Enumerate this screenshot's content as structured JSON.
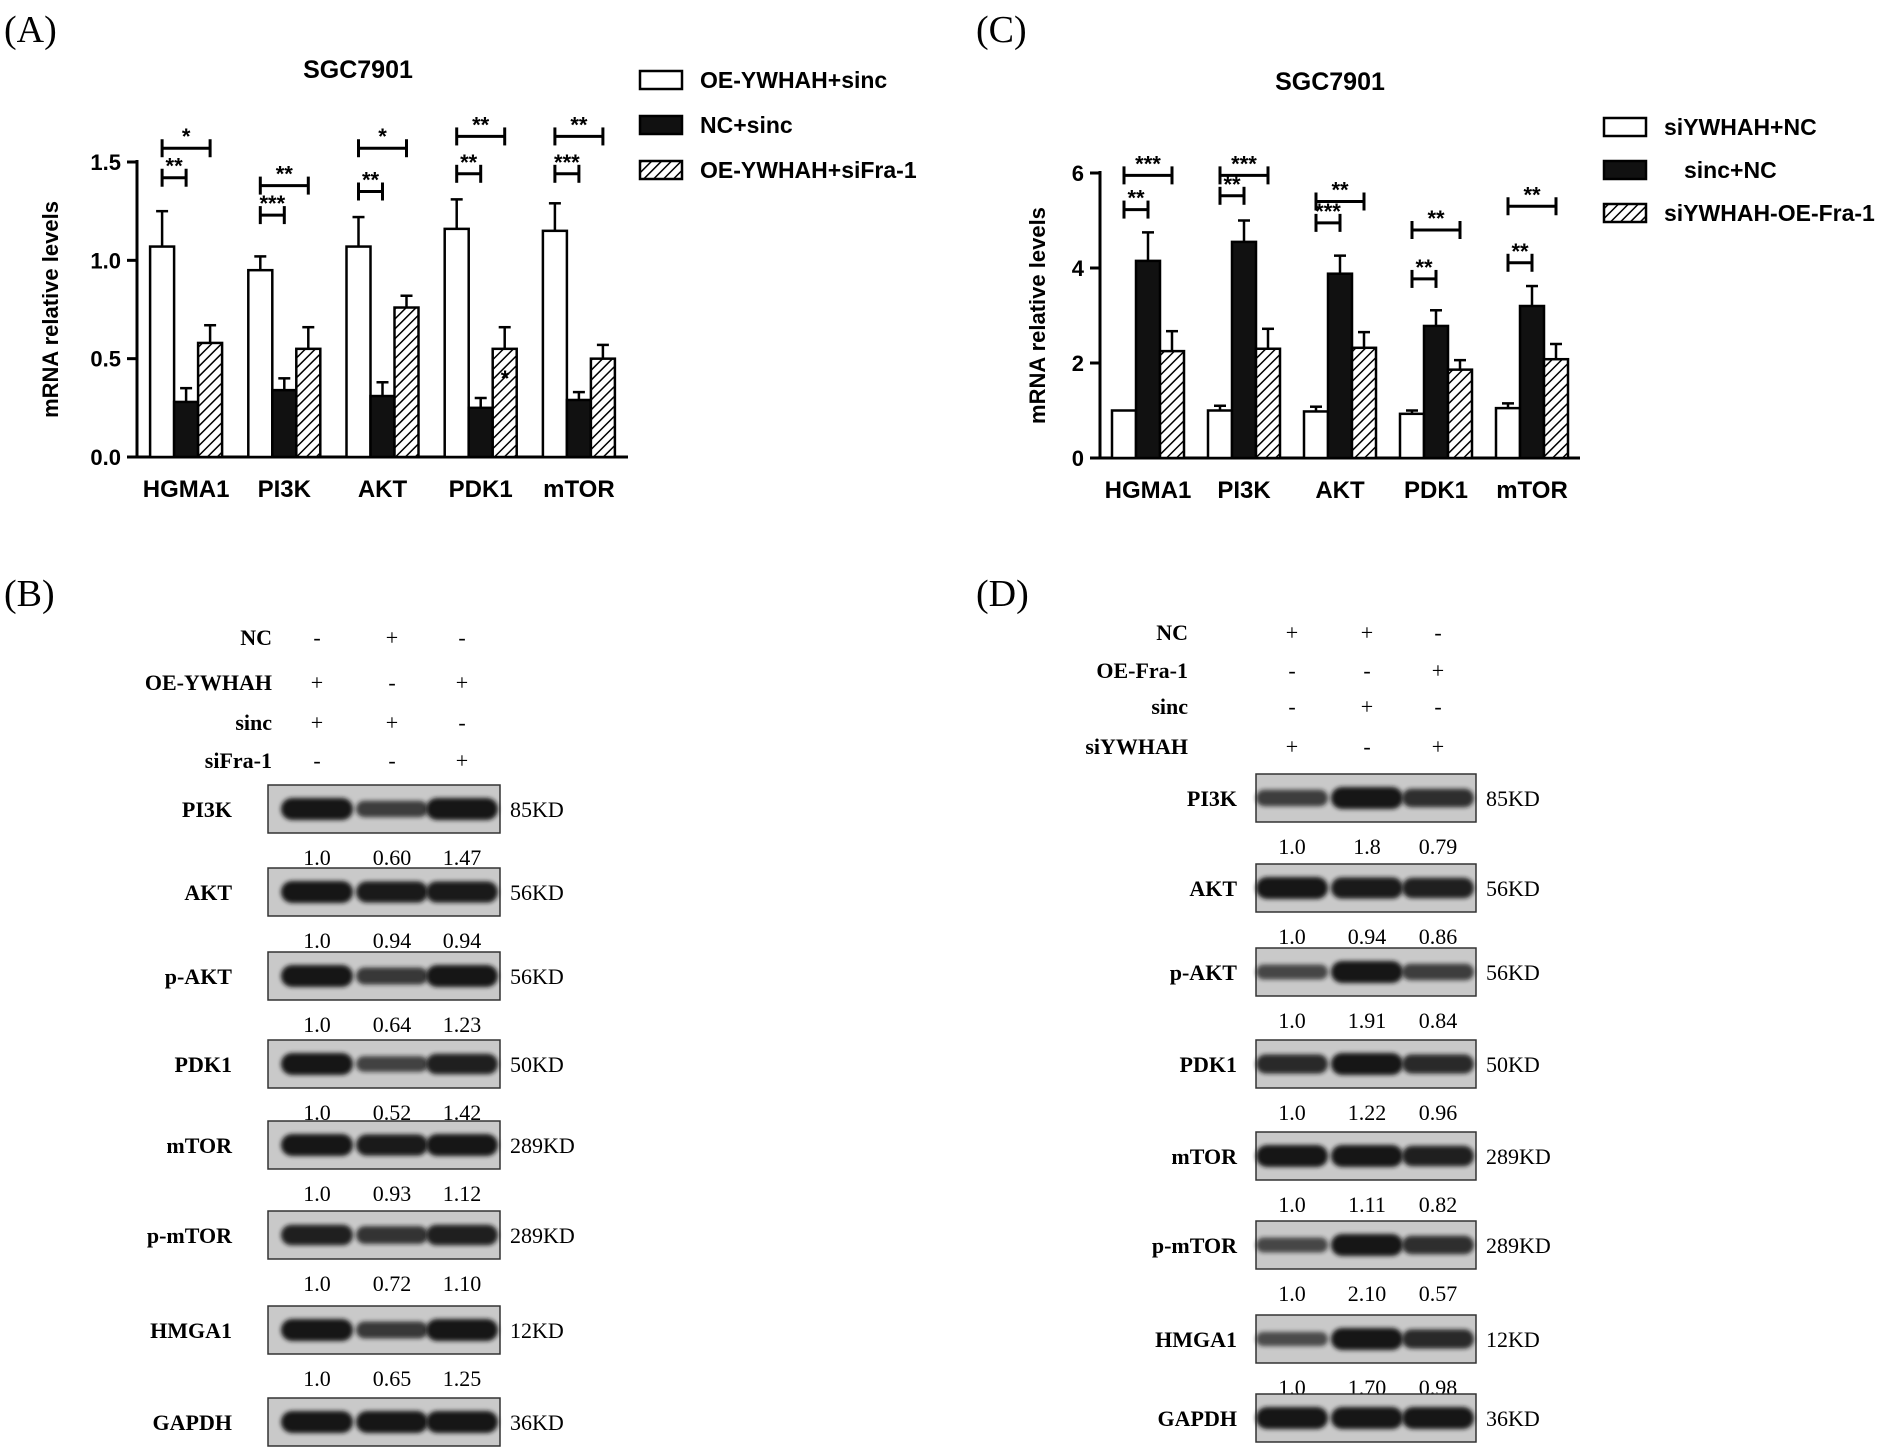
{
  "panels": {
    "A": "(A)",
    "B": "(B)",
    "C": "(C)",
    "D": "(D)"
  },
  "colors": {
    "bar_black": "#111111",
    "band": "#161616",
    "blot_bg": "#c9c9c9"
  },
  "chart_data": [
    {
      "type": "bar",
      "panel": "(A)",
      "title": "SGC7901",
      "ylabel": "mRNA relative levels",
      "xlabel": "",
      "ylim": [
        0,
        1.5
      ],
      "yticks": [
        0.0,
        0.5,
        1.0,
        1.5
      ],
      "ytick_labels": [
        "0.0",
        "0.5",
        "1.0",
        "1.5"
      ],
      "categories": [
        "HGMA1",
        "PI3K",
        "AKT",
        "PDK1",
        "mTOR"
      ],
      "series": [
        {
          "name": "OE-YWHAH+sinc",
          "pattern": "white",
          "values": [
            1.07,
            0.95,
            1.07,
            1.16,
            1.15
          ],
          "errors": [
            0.18,
            0.07,
            0.15,
            0.15,
            0.14
          ]
        },
        {
          "name": "NC+sinc",
          "pattern": "black",
          "values": [
            0.28,
            0.34,
            0.31,
            0.25,
            0.29
          ],
          "errors": [
            0.07,
            0.06,
            0.07,
            0.05,
            0.04
          ]
        },
        {
          "name": "OE-YWHAH+siFra-1",
          "pattern": "hatch",
          "values": [
            0.58,
            0.55,
            0.76,
            0.55,
            0.5
          ],
          "errors": [
            0.09,
            0.11,
            0.06,
            0.11,
            0.07
          ]
        }
      ],
      "significance": [
        {
          "cat": 0,
          "from": 0,
          "to": 1,
          "label": "**",
          "y": 1.42
        },
        {
          "cat": 0,
          "from": 0,
          "to": 2,
          "label": "*",
          "y": 1.57
        },
        {
          "cat": 1,
          "from": 0,
          "to": 1,
          "label": "***",
          "y": 1.23
        },
        {
          "cat": 1,
          "from": 0,
          "to": 2,
          "label": "**",
          "y": 1.38
        },
        {
          "cat": 2,
          "from": 0,
          "to": 1,
          "label": "**",
          "y": 1.35
        },
        {
          "cat": 2,
          "from": 0,
          "to": 2,
          "label": "*",
          "y": 1.57
        },
        {
          "cat": 3,
          "from": 0,
          "to": 1,
          "label": "**",
          "y": 1.44
        },
        {
          "cat": 3,
          "from": 0,
          "to": 2,
          "label": "**",
          "y": 1.63
        },
        {
          "cat": 4,
          "from": 0,
          "to": 1,
          "label": "***",
          "y": 1.44
        },
        {
          "cat": 4,
          "from": 0,
          "to": 2,
          "label": "**",
          "y": 1.63
        }
      ],
      "annotations": [
        {
          "text": "*",
          "cat": 3,
          "y": 0.36
        }
      ]
    },
    {
      "type": "bar",
      "panel": "(C)",
      "title": "SGC7901",
      "ylabel": "mRNA relative levels",
      "xlabel": "",
      "ylim": [
        0,
        6
      ],
      "yticks": [
        0,
        2,
        4,
        6
      ],
      "ytick_labels": [
        "0",
        "2",
        "4",
        "6"
      ],
      "categories": [
        "HGMA1",
        "PI3K",
        "AKT",
        "PDK1",
        "mTOR"
      ],
      "series": [
        {
          "name": "siYWHAH+NC",
          "pattern": "white",
          "values": [
            1.0,
            1.0,
            0.98,
            0.93,
            1.05
          ],
          "errors": [
            0.0,
            0.1,
            0.1,
            0.07,
            0.1
          ]
        },
        {
          "name": "sinc+NC",
          "pattern": "black",
          "values": [
            4.15,
            4.55,
            3.88,
            2.78,
            3.2
          ],
          "errors": [
            0.6,
            0.45,
            0.38,
            0.33,
            0.42
          ]
        },
        {
          "name": "siYWHAH-OE-Fra-1",
          "pattern": "hatch",
          "values": [
            2.25,
            2.3,
            2.32,
            1.86,
            2.08
          ],
          "errors": [
            0.42,
            0.42,
            0.33,
            0.2,
            0.32
          ]
        }
      ],
      "significance": [
        {
          "cat": 0,
          "from": 0,
          "to": 1,
          "label": "**",
          "y": 5.23
        },
        {
          "cat": 0,
          "from": 0,
          "to": 2,
          "label": "***",
          "y": 5.95
        },
        {
          "cat": 1,
          "from": 0,
          "to": 1,
          "label": "**",
          "y": 5.52
        },
        {
          "cat": 1,
          "from": 0,
          "to": 2,
          "label": "***",
          "y": 5.95
        },
        {
          "cat": 2,
          "from": 0,
          "to": 1,
          "label": "***",
          "y": 4.95
        },
        {
          "cat": 2,
          "from": 0,
          "to": 2,
          "label": "**",
          "y": 5.4
        },
        {
          "cat": 3,
          "from": 0,
          "to": 1,
          "label": "**",
          "y": 3.77
        },
        {
          "cat": 3,
          "from": 0,
          "to": 2,
          "label": "**",
          "y": 4.8
        },
        {
          "cat": 4,
          "from": 0,
          "to": 1,
          "label": "**",
          "y": 4.11
        },
        {
          "cat": 4,
          "from": 0,
          "to": 2,
          "label": "**",
          "y": 5.3
        }
      ]
    }
  ],
  "western_blots": [
    {
      "panel": "(B)",
      "conditions": [
        {
          "name": "NC",
          "signs": [
            "-",
            "+",
            "-"
          ]
        },
        {
          "name": "OE-YWHAH",
          "signs": [
            "+",
            "-",
            "+"
          ]
        },
        {
          "name": "sinc",
          "signs": [
            "+",
            "+",
            "-"
          ]
        },
        {
          "name": "siFra-1",
          "signs": [
            "-",
            "-",
            "+"
          ]
        }
      ],
      "blots": [
        {
          "protein": "PI3K",
          "size": "85KD",
          "quant": [
            "1.0",
            "0.60",
            "1.47"
          ],
          "intensity": [
            1.0,
            0.6,
            1.0
          ]
        },
        {
          "protein": "AKT",
          "size": "56KD",
          "quant": [
            "1.0",
            "0.94",
            "0.94"
          ],
          "intensity": [
            1.0,
            0.95,
            0.95
          ]
        },
        {
          "protein": "p-AKT",
          "size": "56KD",
          "quant": [
            "1.0",
            "0.64",
            "1.23"
          ],
          "intensity": [
            1.0,
            0.65,
            1.0
          ]
        },
        {
          "protein": "PDK1",
          "size": "50KD",
          "quant": [
            "1.0",
            "0.52",
            "1.42"
          ],
          "intensity": [
            1.0,
            0.55,
            0.9
          ]
        },
        {
          "protein": "mTOR",
          "size": "289KD",
          "quant": [
            "1.0",
            "0.93",
            "1.12"
          ],
          "intensity": [
            1.0,
            0.95,
            1.0
          ]
        },
        {
          "protein": "p-mTOR",
          "size": "289KD",
          "quant": [
            "1.0",
            "0.72",
            "1.10"
          ],
          "intensity": [
            0.9,
            0.7,
            0.9
          ]
        },
        {
          "protein": "HMGA1",
          "size": "12KD",
          "quant": [
            "1.0",
            "0.65",
            "1.25"
          ],
          "intensity": [
            1.0,
            0.65,
            1.0
          ]
        },
        {
          "protein": "GAPDH",
          "size": "36KD",
          "quant": null,
          "intensity": [
            1.0,
            1.0,
            1.0
          ]
        }
      ]
    },
    {
      "panel": "(D)",
      "conditions": [
        {
          "name": "NC",
          "signs": [
            "+",
            "+",
            "-"
          ]
        },
        {
          "name": "OE-Fra-1",
          "signs": [
            "-",
            "-",
            "+"
          ]
        },
        {
          "name": "sinc",
          "signs": [
            "-",
            "+",
            "-"
          ]
        },
        {
          "name": "siYWHAH",
          "signs": [
            "+",
            "-",
            "+"
          ]
        }
      ],
      "blots": [
        {
          "protein": "PI3K",
          "size": "85KD",
          "quant": [
            "1.0",
            "1.8",
            "0.79"
          ],
          "intensity": [
            0.6,
            1.0,
            0.75
          ]
        },
        {
          "protein": "AKT",
          "size": "56KD",
          "quant": [
            "1.0",
            "0.94",
            "0.86"
          ],
          "intensity": [
            1.0,
            0.95,
            0.9
          ]
        },
        {
          "protein": "p-AKT",
          "size": "56KD",
          "quant": [
            "1.0",
            "1.91",
            "0.84"
          ],
          "intensity": [
            0.5,
            1.0,
            0.6
          ]
        },
        {
          "protein": "PDK1",
          "size": "50KD",
          "quant": [
            "1.0",
            "1.22",
            "0.96"
          ],
          "intensity": [
            0.8,
            1.0,
            0.8
          ]
        },
        {
          "protein": "mTOR",
          "size": "289KD",
          "quant": [
            "1.0",
            "1.11",
            "0.82"
          ],
          "intensity": [
            1.0,
            1.0,
            0.9
          ]
        },
        {
          "protein": "p-mTOR",
          "size": "289KD",
          "quant": [
            "1.0",
            "2.10",
            "0.57"
          ],
          "intensity": [
            0.5,
            1.0,
            0.75
          ]
        },
        {
          "protein": "HMGA1",
          "size": "12KD",
          "quant": [
            "1.0",
            "1.70",
            "0.98"
          ],
          "intensity": [
            0.45,
            1.0,
            0.8
          ]
        },
        {
          "protein": "GAPDH",
          "size": "36KD",
          "quant": null,
          "intensity": [
            1.0,
            1.0,
            1.0
          ]
        }
      ]
    }
  ]
}
